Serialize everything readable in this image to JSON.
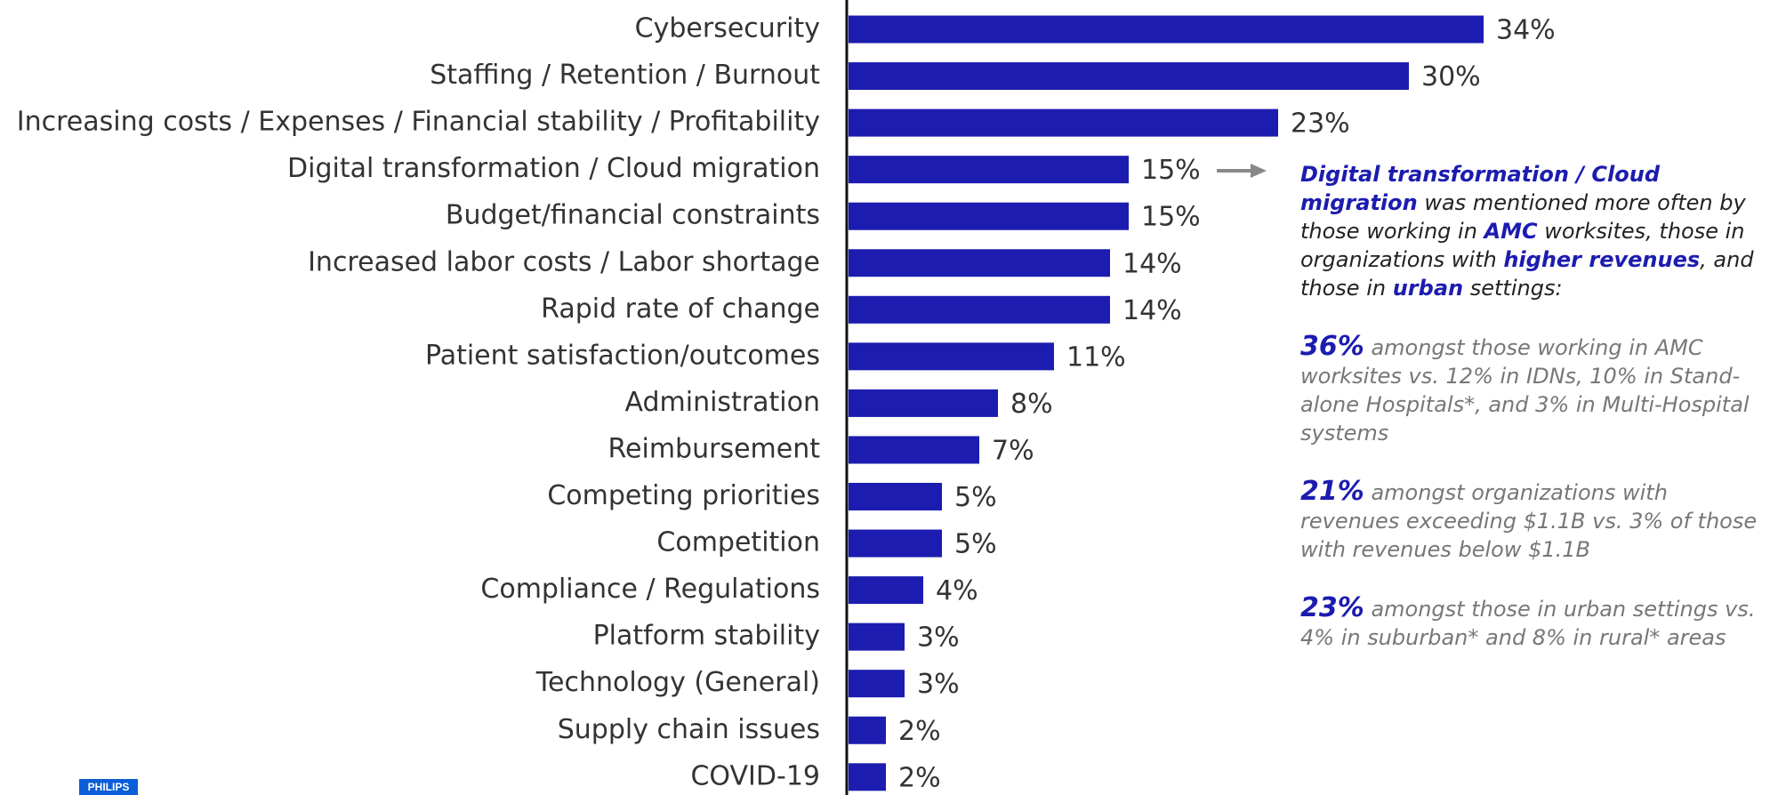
{
  "chart_data": {
    "type": "bar",
    "orientation": "horizontal",
    "categories": [
      "Cybersecurity",
      "Staffing / Retention / Burnout",
      "Increasing costs / Expenses / Financial stability / Profitability",
      "Digital transformation / Cloud migration",
      "Budget/financial constraints",
      "Increased labor costs / Labor shortage",
      "Rapid rate of change",
      "Patient satisfaction/outcomes",
      "Administration",
      "Reimbursement",
      "Competing priorities",
      "Competition",
      "Compliance / Regulations",
      "Platform stability",
      "Technology (General)",
      "Supply chain issues",
      "COVID-19"
    ],
    "values": [
      34,
      30,
      23,
      15,
      15,
      14,
      14,
      11,
      8,
      7,
      5,
      5,
      4,
      3,
      3,
      2,
      2
    ],
    "value_labels": [
      "34%",
      "30%",
      "23%",
      "15%",
      "15%",
      "14%",
      "14%",
      "11%",
      "8%",
      "7%",
      "5%",
      "5%",
      "4%",
      "3%",
      "3%",
      "2%",
      "2%"
    ],
    "color": "#1c1cb0",
    "xlim": [
      0,
      40
    ],
    "annotation": {
      "paragraphs": [
        [
          {
            "text": "Digital transformation / Cloud migration",
            "emphasis": true
          },
          {
            "text": " was mentioned more often by those working in "
          },
          {
            "text": "AMC",
            "emphasis": true
          },
          {
            "text": " worksites, those in organizations with "
          },
          {
            "text": "higher revenues",
            "emphasis": true
          },
          {
            "text": ", and those in "
          },
          {
            "text": "urban",
            "emphasis": true
          },
          {
            "text": " settings:"
          }
        ],
        [
          {
            "text": "36%",
            "emphasis": true
          },
          {
            "text": " amongst those working in AMC worksites vs. 12% in IDNs, 10% in Stand-alone Hospitals*, and 3% in Multi-Hospital systems"
          }
        ],
        [
          {
            "text": "21%",
            "emphasis": true
          },
          {
            "text": " amongst organizations with revenues exceeding $1.1B vs. 3% of those with revenues below $1.1B"
          }
        ],
        [
          {
            "text": "23%",
            "emphasis": true
          },
          {
            "text": " amongst those in urban settings vs. 4% in suburban* and 8% in rural* areas"
          }
        ]
      ]
    }
  },
  "logo": "PHILIPS"
}
